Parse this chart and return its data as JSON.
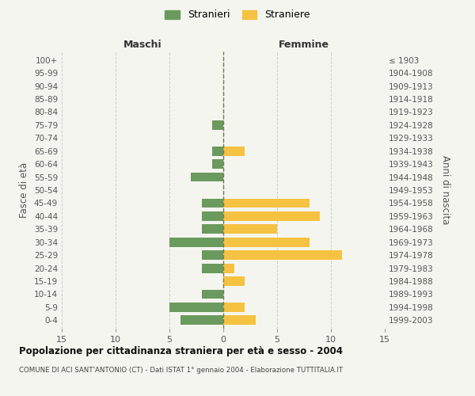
{
  "age_groups": [
    "0-4",
    "5-9",
    "10-14",
    "15-19",
    "20-24",
    "25-29",
    "30-34",
    "35-39",
    "40-44",
    "45-49",
    "50-54",
    "55-59",
    "60-64",
    "65-69",
    "70-74",
    "75-79",
    "80-84",
    "85-89",
    "90-94",
    "95-99",
    "100+"
  ],
  "birth_years": [
    "1999-2003",
    "1994-1998",
    "1989-1993",
    "1984-1988",
    "1979-1983",
    "1974-1978",
    "1969-1973",
    "1964-1968",
    "1959-1963",
    "1954-1958",
    "1949-1953",
    "1944-1948",
    "1939-1943",
    "1934-1938",
    "1929-1933",
    "1924-1928",
    "1919-1923",
    "1914-1918",
    "1909-1913",
    "1904-1908",
    "≤ 1903"
  ],
  "maschi": [
    4,
    5,
    2,
    0,
    2,
    2,
    5,
    2,
    2,
    2,
    0,
    3,
    1,
    1,
    0,
    1,
    0,
    0,
    0,
    0,
    0
  ],
  "femmine": [
    3,
    2,
    0,
    2,
    1,
    11,
    8,
    5,
    9,
    8,
    0,
    0,
    0,
    2,
    0,
    0,
    0,
    0,
    0,
    0,
    0
  ],
  "color_maschi": "#6b9a5e",
  "color_femmine": "#f5c242",
  "xlim": 15,
  "title": "Popolazione per cittadinanza straniera per età e sesso - 2004",
  "subtitle": "COMUNE DI ACI SANT'ANTONIO (CT) - Dati ISTAT 1° gennaio 2004 - Elaborazione TUTTITALIA.IT",
  "ylabel_left": "Fasce di età",
  "ylabel_right": "Anni di nascita",
  "xlabel_maschi": "Maschi",
  "xlabel_femmine": "Femmine",
  "legend_stranieri": "Stranieri",
  "legend_straniere": "Straniere",
  "bg_color": "#f5f5f0",
  "grid_color": "#cccccc",
  "bar_height": 0.72
}
